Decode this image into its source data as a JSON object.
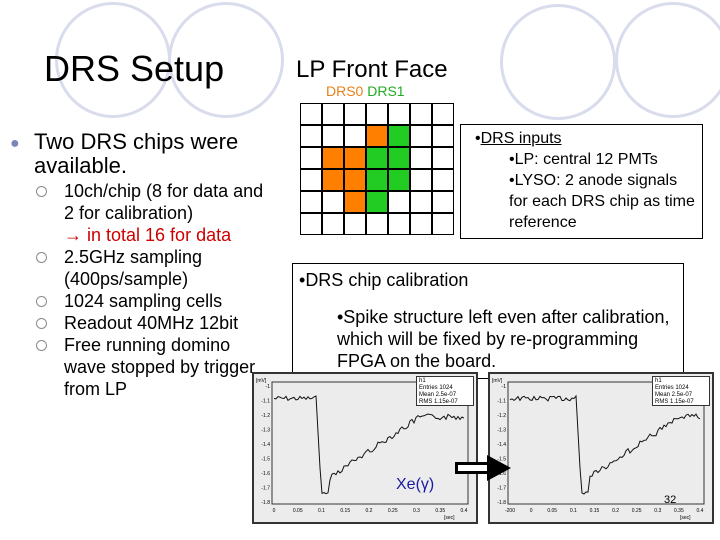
{
  "slide": {
    "title": "DRS Setup",
    "section_title": "LP Front Face",
    "drs0": "DRS0",
    "drs1": "DRS1",
    "main_bullet": "Two DRS chips were available.",
    "sub_bullets": [
      {
        "text": "10ch/chip (8 for data and 2 for calibration)",
        "arrow_text": "→ in total 16 for data"
      },
      {
        "text": "2.5GHz sampling (400ps/sample)"
      },
      {
        "text": "1024 sampling cells"
      },
      {
        "text": "Readout 40MHz 12bit"
      },
      {
        "text": "Free running domino wave stopped by trigger from LP"
      }
    ],
    "drs_inputs": {
      "title": "DRS inputs",
      "lines": [
        "•LP: central 12 PMTs",
        "•LYSO: 2 anode signals for each DRS chip as time reference"
      ]
    },
    "calibration": {
      "title": "DRS chip calibration",
      "text": "•Spike structure left even after calibration, which will be fixed by re-programming FPGA on the board."
    },
    "xe_label": "Xe(γ)",
    "page_number": "32"
  },
  "colors": {
    "drs0": "#ff7f00",
    "drs1": "#22cc22",
    "deco_circle": "#d8dcec"
  },
  "grid_cells": {
    "rows": 6,
    "cols": 7,
    "drs0": [
      [
        1,
        3
      ],
      [
        2,
        1
      ],
      [
        2,
        2
      ],
      [
        3,
        1
      ],
      [
        3,
        2
      ],
      [
        4,
        2
      ]
    ],
    "drs1": [
      [
        1,
        4
      ],
      [
        2,
        3
      ],
      [
        2,
        4
      ],
      [
        3,
        3
      ],
      [
        3,
        4
      ],
      [
        4,
        3
      ]
    ]
  },
  "plots": {
    "left": {
      "y_ticks": [
        "-1",
        "-1.1",
        "-1.2",
        "-1.3",
        "-1.4",
        "-1.5",
        "-1.6",
        "-1.7",
        "-1.8"
      ],
      "x_ticks": [
        "0",
        "0.05",
        "0.1",
        "0.15",
        "0.2",
        "0.25",
        "0.3",
        "0.35",
        "0.4"
      ],
      "x_unit": "[sec]",
      "y_unit": "[mV]"
    },
    "right": {
      "y_ticks": [
        "-1",
        "-1.1",
        "-1.2",
        "-1.3",
        "-1.4",
        "-1.5",
        "-1.6",
        "-1.7",
        "-1.8"
      ],
      "x_ticks": [
        "-200",
        "0",
        "0.05",
        "0.1",
        "0.15",
        "0.2",
        "0.25",
        "0.3",
        "0.35",
        "0.4"
      ],
      "x_unit": "[sec]",
      "y_unit": "[mV]"
    }
  }
}
